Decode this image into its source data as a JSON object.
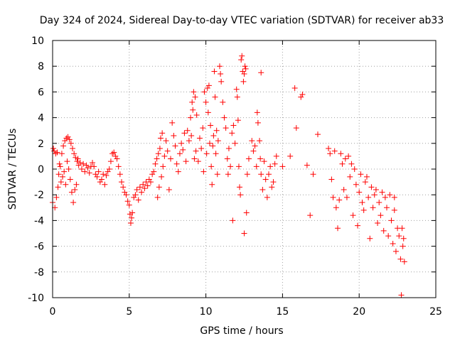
{
  "chart_data": {
    "type": "scatter",
    "title": "Day 324 of 2024, Sidereal Day-to-day VTEC variation (SDTVAR) for receiver ab33",
    "xlabel": "GPS time / hours",
    "ylabel": "SDTVAR / TECUs",
    "xlim": [
      0,
      25
    ],
    "ylim": [
      -10,
      10
    ],
    "xticks": [
      0,
      5,
      10,
      15,
      20,
      25
    ],
    "yticks": [
      -10,
      -8,
      -6,
      -4,
      -2,
      0,
      2,
      4,
      6,
      8,
      10
    ],
    "xtick_labels": [
      "0",
      "5",
      "10",
      "15",
      "20",
      "25"
    ],
    "ytick_labels": [
      "-10",
      "-8",
      "-6",
      "-4",
      "-2",
      "0",
      "2",
      "4",
      "6",
      "8",
      "10"
    ],
    "grid": true,
    "marker": "+",
    "color": "#ff0000",
    "series": [
      {
        "name": "SDTVAR",
        "points": [
          [
            0.0,
            -2.6
          ],
          [
            0.05,
            1.6
          ],
          [
            0.1,
            1.4
          ],
          [
            0.15,
            -3.0
          ],
          [
            0.2,
            1.2
          ],
          [
            0.25,
            -2.2
          ],
          [
            0.3,
            1.3
          ],
          [
            0.35,
            -1.4
          ],
          [
            0.4,
            -0.4
          ],
          [
            0.45,
            0.4
          ],
          [
            0.5,
            0.2
          ],
          [
            0.55,
            -1.0
          ],
          [
            0.6,
            1.2
          ],
          [
            0.65,
            -0.6
          ],
          [
            0.7,
            1.8
          ],
          [
            0.75,
            -0.2
          ],
          [
            0.8,
            2.2
          ],
          [
            0.85,
            -1.2
          ],
          [
            0.9,
            2.4
          ],
          [
            0.95,
            0.6
          ],
          [
            1.0,
            2.5
          ],
          [
            1.05,
            0.0
          ],
          [
            1.1,
            2.3
          ],
          [
            1.15,
            -0.8
          ],
          [
            1.2,
            2.0
          ],
          [
            1.25,
            -1.8
          ],
          [
            1.3,
            1.6
          ],
          [
            1.35,
            -2.6
          ],
          [
            1.4,
            1.2
          ],
          [
            1.45,
            -1.6
          ],
          [
            1.5,
            0.9
          ],
          [
            1.55,
            -1.2
          ],
          [
            1.6,
            0.6
          ],
          [
            1.65,
            0.8
          ],
          [
            1.7,
            0.3
          ],
          [
            1.8,
            0.5
          ],
          [
            1.9,
            0.0
          ],
          [
            2.0,
            0.4
          ],
          [
            2.1,
            -0.2
          ],
          [
            2.2,
            0.3
          ],
          [
            2.3,
            0.1
          ],
          [
            2.4,
            -0.3
          ],
          [
            2.5,
            0.2
          ],
          [
            2.6,
            0.5
          ],
          [
            2.7,
            0.2
          ],
          [
            2.8,
            -0.4
          ],
          [
            2.9,
            -0.6
          ],
          [
            3.0,
            -0.2
          ],
          [
            3.1,
            -1.0
          ],
          [
            3.2,
            -0.8
          ],
          [
            3.3,
            -0.4
          ],
          [
            3.4,
            -1.2
          ],
          [
            3.5,
            -0.5
          ],
          [
            3.6,
            -0.2
          ],
          [
            3.7,
            0.0
          ],
          [
            3.8,
            0.6
          ],
          [
            3.9,
            1.2
          ],
          [
            4.0,
            1.3
          ],
          [
            4.1,
            1.0
          ],
          [
            4.2,
            0.8
          ],
          [
            4.3,
            0.2
          ],
          [
            4.4,
            -0.4
          ],
          [
            4.5,
            -1.0
          ],
          [
            4.6,
            -1.4
          ],
          [
            4.7,
            -1.8
          ],
          [
            4.8,
            -2.0
          ],
          [
            4.9,
            -2.5
          ],
          [
            5.0,
            -2.8
          ],
          [
            5.05,
            -3.5
          ],
          [
            5.1,
            -4.2
          ],
          [
            5.15,
            -3.8
          ],
          [
            5.2,
            -3.4
          ],
          [
            5.3,
            -2.2
          ],
          [
            5.4,
            -2.0
          ],
          [
            5.5,
            -1.6
          ],
          [
            5.6,
            -2.4
          ],
          [
            5.7,
            -1.4
          ],
          [
            5.8,
            -1.8
          ],
          [
            5.9,
            -1.2
          ],
          [
            6.0,
            -1.5
          ],
          [
            6.1,
            -1.0
          ],
          [
            6.2,
            -1.3
          ],
          [
            6.3,
            -0.8
          ],
          [
            6.4,
            -1.0
          ],
          [
            6.5,
            -0.4
          ],
          [
            6.6,
            -0.2
          ],
          [
            6.7,
            0.4
          ],
          [
            6.8,
            0.8
          ],
          [
            6.85,
            -2.2
          ],
          [
            6.9,
            1.2
          ],
          [
            6.95,
            -1.4
          ],
          [
            7.0,
            1.6
          ],
          [
            7.05,
            2.4
          ],
          [
            7.1,
            -0.6
          ],
          [
            7.15,
            2.8
          ],
          [
            7.2,
            0.2
          ],
          [
            7.3,
            1.0
          ],
          [
            7.4,
            2.2
          ],
          [
            7.5,
            1.4
          ],
          [
            7.6,
            -1.6
          ],
          [
            7.7,
            0.8
          ],
          [
            7.8,
            3.6
          ],
          [
            7.9,
            2.6
          ],
          [
            8.0,
            1.8
          ],
          [
            8.1,
            0.4
          ],
          [
            8.2,
            -0.2
          ],
          [
            8.3,
            1.2
          ],
          [
            8.4,
            2.0
          ],
          [
            8.5,
            1.5
          ],
          [
            8.6,
            2.8
          ],
          [
            8.7,
            0.6
          ],
          [
            8.8,
            3.0
          ],
          [
            8.9,
            2.2
          ],
          [
            9.0,
            4.0
          ],
          [
            9.05,
            2.6
          ],
          [
            9.1,
            5.2
          ],
          [
            9.15,
            4.6
          ],
          [
            9.2,
            6.0
          ],
          [
            9.25,
            0.8
          ],
          [
            9.3,
            5.6
          ],
          [
            9.35,
            1.4
          ],
          [
            9.4,
            4.2
          ],
          [
            9.5,
            0.6
          ],
          [
            9.6,
            2.4
          ],
          [
            9.7,
            1.6
          ],
          [
            9.8,
            3.2
          ],
          [
            9.85,
            -0.2
          ],
          [
            9.9,
            6.0
          ],
          [
            10.0,
            5.2
          ],
          [
            10.05,
            1.2
          ],
          [
            10.1,
            6.3
          ],
          [
            10.15,
            4.4
          ],
          [
            10.2,
            6.5
          ],
          [
            10.25,
            2.0
          ],
          [
            10.3,
            3.4
          ],
          [
            10.35,
            0.2
          ],
          [
            10.4,
            -1.2
          ],
          [
            10.45,
            1.8
          ],
          [
            10.5,
            2.6
          ],
          [
            10.55,
            7.6
          ],
          [
            10.6,
            5.6
          ],
          [
            10.65,
            1.2
          ],
          [
            10.7,
            3.0
          ],
          [
            10.75,
            -0.4
          ],
          [
            10.8,
            2.2
          ],
          [
            10.9,
            8.0
          ],
          [
            10.95,
            7.4
          ],
          [
            11.0,
            6.8
          ],
          [
            11.1,
            5.2
          ],
          [
            11.2,
            4.0
          ],
          [
            11.3,
            3.2
          ],
          [
            11.4,
            0.8
          ],
          [
            11.45,
            -0.4
          ],
          [
            11.5,
            1.6
          ],
          [
            11.6,
            0.2
          ],
          [
            11.7,
            2.8
          ],
          [
            11.75,
            -4.0
          ],
          [
            11.8,
            3.4
          ],
          [
            11.9,
            2.0
          ],
          [
            12.0,
            6.2
          ],
          [
            12.05,
            5.6
          ],
          [
            12.1,
            3.8
          ],
          [
            12.15,
            0.2
          ],
          [
            12.2,
            -1.4
          ],
          [
            12.25,
            -2.0
          ],
          [
            12.3,
            8.5
          ],
          [
            12.35,
            8.8
          ],
          [
            12.4,
            7.6
          ],
          [
            12.45,
            6.8
          ],
          [
            12.5,
            7.4
          ],
          [
            12.5,
            -5.0
          ],
          [
            12.55,
            8.0
          ],
          [
            12.6,
            7.8
          ],
          [
            12.65,
            -3.4
          ],
          [
            12.7,
            -0.4
          ],
          [
            12.8,
            0.8
          ],
          [
            13.0,
            2.2
          ],
          [
            13.1,
            1.4
          ],
          [
            13.2,
            1.8
          ],
          [
            13.3,
            0.2
          ],
          [
            13.35,
            4.4
          ],
          [
            13.4,
            3.6
          ],
          [
            13.5,
            2.2
          ],
          [
            13.55,
            0.8
          ],
          [
            13.6,
            -0.4
          ],
          [
            13.7,
            -1.6
          ],
          [
            13.8,
            0.6
          ],
          [
            13.9,
            -0.8
          ],
          [
            14.0,
            -2.2
          ],
          [
            14.1,
            -0.4
          ],
          [
            14.2,
            0.2
          ],
          [
            14.3,
            -1.4
          ],
          [
            14.4,
            -1.0
          ],
          [
            14.5,
            0.4
          ],
          [
            14.6,
            1.0
          ],
          [
            13.6,
            7.5
          ],
          [
            15.0,
            0.2
          ],
          [
            15.5,
            1.0
          ],
          [
            15.8,
            6.3
          ],
          [
            15.9,
            3.2
          ],
          [
            16.2,
            5.6
          ],
          [
            16.3,
            5.8
          ],
          [
            16.6,
            0.3
          ],
          [
            16.8,
            -3.6
          ],
          [
            17.0,
            -0.4
          ],
          [
            17.3,
            2.7
          ],
          [
            18.0,
            1.6
          ],
          [
            18.1,
            1.2
          ],
          [
            18.2,
            -0.8
          ],
          [
            18.3,
            -2.2
          ],
          [
            18.4,
            1.4
          ],
          [
            18.5,
            -3.0
          ],
          [
            18.6,
            -4.6
          ],
          [
            18.7,
            -2.4
          ],
          [
            18.8,
            1.2
          ],
          [
            18.9,
            0.4
          ],
          [
            19.0,
            -1.6
          ],
          [
            19.1,
            0.8
          ],
          [
            19.2,
            -2.2
          ],
          [
            19.3,
            1.0
          ],
          [
            19.4,
            -0.6
          ],
          [
            19.5,
            0.4
          ],
          [
            19.6,
            -3.6
          ],
          [
            19.7,
            0.0
          ],
          [
            19.8,
            -1.2
          ],
          [
            19.9,
            -4.4
          ],
          [
            20.0,
            -1.8
          ],
          [
            20.1,
            -0.4
          ],
          [
            20.2,
            -2.6
          ],
          [
            20.3,
            -3.2
          ],
          [
            20.4,
            -1.0
          ],
          [
            20.5,
            -0.6
          ],
          [
            20.6,
            -2.2
          ],
          [
            20.7,
            -5.4
          ],
          [
            20.8,
            -1.4
          ],
          [
            20.9,
            -3.0
          ],
          [
            21.0,
            -2.0
          ],
          [
            21.1,
            -1.6
          ],
          [
            21.2,
            -4.2
          ],
          [
            21.3,
            -2.6
          ],
          [
            21.4,
            -3.6
          ],
          [
            21.5,
            -1.8
          ],
          [
            21.6,
            -4.8
          ],
          [
            21.7,
            -2.2
          ],
          [
            21.8,
            -3.0
          ],
          [
            21.9,
            -5.2
          ],
          [
            22.0,
            -2.0
          ],
          [
            22.1,
            -4.0
          ],
          [
            22.2,
            -5.8
          ],
          [
            22.3,
            -3.2
          ],
          [
            22.4,
            -6.4
          ],
          [
            22.5,
            -4.6
          ],
          [
            22.6,
            -5.2
          ],
          [
            22.7,
            -7.0
          ],
          [
            22.75,
            -9.8
          ],
          [
            22.8,
            -4.6
          ],
          [
            22.85,
            -6.0
          ],
          [
            22.9,
            -5.4
          ],
          [
            22.95,
            -7.2
          ],
          [
            22.3,
            -2.2
          ]
        ]
      }
    ]
  }
}
